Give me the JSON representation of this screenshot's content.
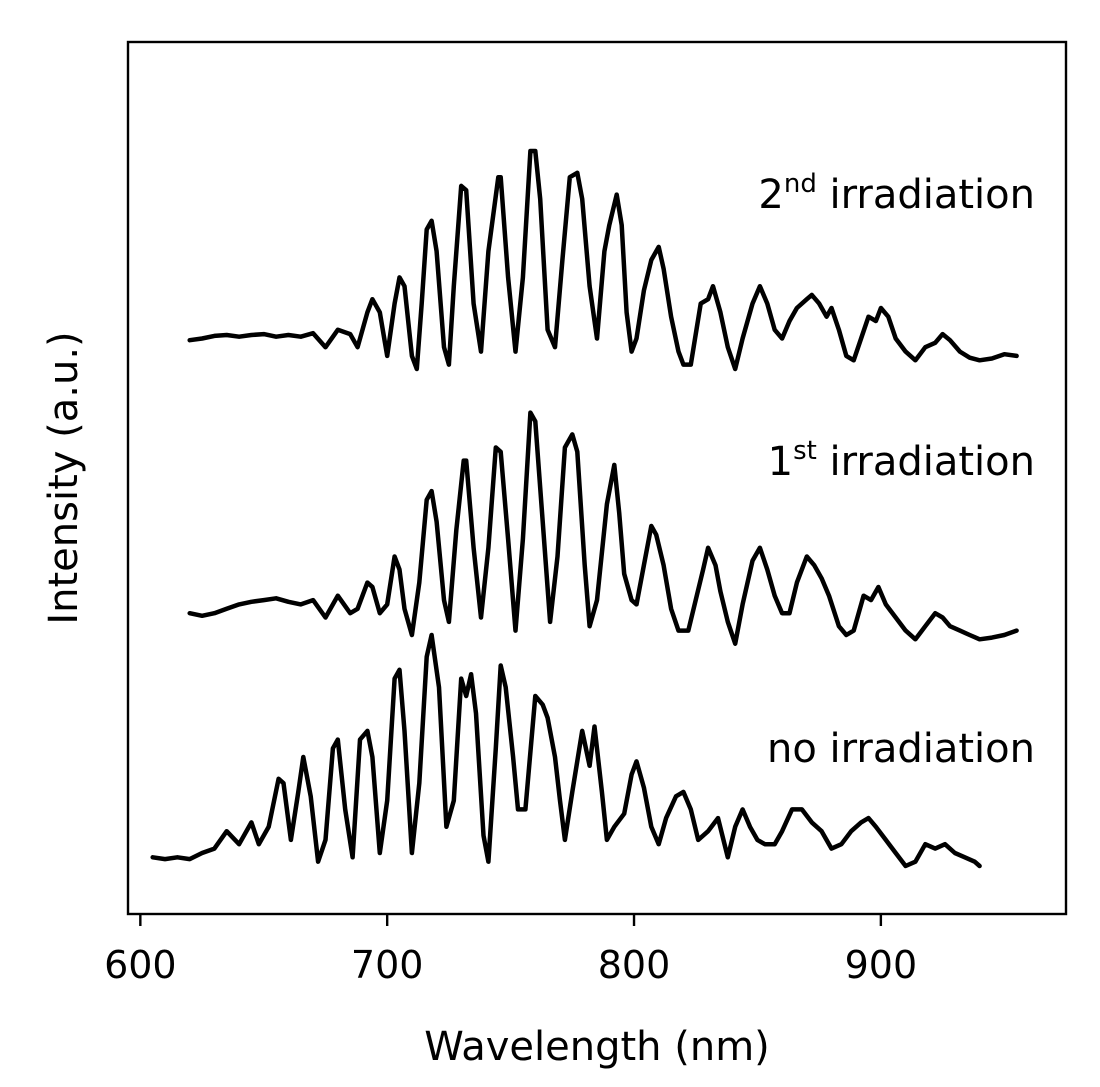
{
  "chart_data": {
    "type": "line",
    "title": "",
    "xlabel": "Wavelength (nm)",
    "ylabel": "Intensity (a.u.)",
    "xlim": [
      595,
      975
    ],
    "ylim": [
      0,
      10
    ],
    "xticks": [
      {
        "value": 600,
        "label": "600"
      },
      {
        "value": 700,
        "label": "700"
      },
      {
        "value": 800,
        "label": "800"
      },
      {
        "value": 900,
        "label": "900"
      }
    ],
    "y_tick_labels": "none",
    "grid": false,
    "legend": "none",
    "line_color": "#000000",
    "series": [
      {
        "label_prefix": "2",
        "label_sup": "nd",
        "label_text": " irradiation",
        "points": [
          [
            620,
            6.58
          ],
          [
            625,
            6.6
          ],
          [
            630,
            6.63
          ],
          [
            635,
            6.64
          ],
          [
            640,
            6.62
          ],
          [
            645,
            6.64
          ],
          [
            650,
            6.65
          ],
          [
            655,
            6.62
          ],
          [
            660,
            6.64
          ],
          [
            665,
            6.62
          ],
          [
            670,
            6.66
          ],
          [
            675,
            6.5
          ],
          [
            680,
            6.7
          ],
          [
            685,
            6.65
          ],
          [
            688,
            6.5
          ],
          [
            692,
            6.9
          ],
          [
            694,
            7.05
          ],
          [
            697,
            6.9
          ],
          [
            700,
            6.4
          ],
          [
            703,
            7.0
          ],
          [
            705,
            7.3
          ],
          [
            707,
            7.2
          ],
          [
            710,
            6.4
          ],
          [
            712,
            6.25
          ],
          [
            714,
            7.0
          ],
          [
            716,
            7.85
          ],
          [
            718,
            7.95
          ],
          [
            720,
            7.6
          ],
          [
            723,
            6.5
          ],
          [
            725,
            6.3
          ],
          [
            727,
            7.2
          ],
          [
            730,
            8.35
          ],
          [
            732,
            8.3
          ],
          [
            735,
            7.0
          ],
          [
            738,
            6.45
          ],
          [
            741,
            7.6
          ],
          [
            745,
            8.45
          ],
          [
            746,
            8.45
          ],
          [
            749,
            7.3
          ],
          [
            752,
            6.45
          ],
          [
            755,
            7.3
          ],
          [
            758,
            8.75
          ],
          [
            760,
            8.75
          ],
          [
            762,
            8.2
          ],
          [
            765,
            6.7
          ],
          [
            768,
            6.5
          ],
          [
            771,
            7.5
          ],
          [
            774,
            8.45
          ],
          [
            777,
            8.5
          ],
          [
            779,
            8.2
          ],
          [
            782,
            7.2
          ],
          [
            785,
            6.6
          ],
          [
            788,
            7.6
          ],
          [
            790,
            7.9
          ],
          [
            793,
            8.25
          ],
          [
            795,
            7.9
          ],
          [
            797,
            6.9
          ],
          [
            799,
            6.45
          ],
          [
            801,
            6.6
          ],
          [
            804,
            7.15
          ],
          [
            807,
            7.5
          ],
          [
            810,
            7.65
          ],
          [
            812,
            7.4
          ],
          [
            815,
            6.85
          ],
          [
            818,
            6.45
          ],
          [
            820,
            6.3
          ],
          [
            823,
            6.3
          ],
          [
            827,
            7.0
          ],
          [
            830,
            7.05
          ],
          [
            832,
            7.2
          ],
          [
            835,
            6.9
          ],
          [
            838,
            6.5
          ],
          [
            841,
            6.25
          ],
          [
            844,
            6.6
          ],
          [
            848,
            7.0
          ],
          [
            851,
            7.2
          ],
          [
            854,
            7.0
          ],
          [
            857,
            6.7
          ],
          [
            860,
            6.6
          ],
          [
            863,
            6.8
          ],
          [
            866,
            6.95
          ],
          [
            870,
            7.05
          ],
          [
            872,
            7.1
          ],
          [
            875,
            7.0
          ],
          [
            878,
            6.85
          ],
          [
            880,
            6.95
          ],
          [
            883,
            6.7
          ],
          [
            886,
            6.4
          ],
          [
            889,
            6.35
          ],
          [
            892,
            6.6
          ],
          [
            895,
            6.85
          ],
          [
            898,
            6.8
          ],
          [
            900,
            6.95
          ],
          [
            903,
            6.85
          ],
          [
            906,
            6.6
          ],
          [
            910,
            6.45
          ],
          [
            914,
            6.35
          ],
          [
            918,
            6.5
          ],
          [
            922,
            6.55
          ],
          [
            925,
            6.65
          ],
          [
            928,
            6.58
          ],
          [
            932,
            6.45
          ],
          [
            936,
            6.38
          ],
          [
            940,
            6.35
          ],
          [
            945,
            6.37
          ],
          [
            950,
            6.42
          ],
          [
            955,
            6.4
          ]
        ]
      },
      {
        "label_prefix": "1",
        "label_sup": "st",
        "label_text": " irradiation",
        "points": [
          [
            620,
            3.45
          ],
          [
            625,
            3.42
          ],
          [
            630,
            3.45
          ],
          [
            635,
            3.5
          ],
          [
            640,
            3.55
          ],
          [
            645,
            3.58
          ],
          [
            650,
            3.6
          ],
          [
            655,
            3.62
          ],
          [
            660,
            3.58
          ],
          [
            665,
            3.55
          ],
          [
            670,
            3.6
          ],
          [
            675,
            3.4
          ],
          [
            680,
            3.65
          ],
          [
            685,
            3.45
          ],
          [
            688,
            3.5
          ],
          [
            692,
            3.8
          ],
          [
            694,
            3.75
          ],
          [
            697,
            3.45
          ],
          [
            700,
            3.55
          ],
          [
            703,
            4.1
          ],
          [
            705,
            3.95
          ],
          [
            707,
            3.5
          ],
          [
            710,
            3.2
          ],
          [
            713,
            3.8
          ],
          [
            716,
            4.75
          ],
          [
            718,
            4.85
          ],
          [
            720,
            4.5
          ],
          [
            723,
            3.6
          ],
          [
            725,
            3.35
          ],
          [
            728,
            4.4
          ],
          [
            731,
            5.2
          ],
          [
            732,
            5.2
          ],
          [
            735,
            4.2
          ],
          [
            738,
            3.4
          ],
          [
            741,
            4.2
          ],
          [
            744,
            5.35
          ],
          [
            746,
            5.3
          ],
          [
            749,
            4.3
          ],
          [
            752,
            3.25
          ],
          [
            755,
            4.3
          ],
          [
            758,
            5.75
          ],
          [
            760,
            5.65
          ],
          [
            763,
            4.5
          ],
          [
            766,
            3.35
          ],
          [
            769,
            4.1
          ],
          [
            772,
            5.35
          ],
          [
            775,
            5.5
          ],
          [
            777,
            5.3
          ],
          [
            780,
            4.0
          ],
          [
            782,
            3.3
          ],
          [
            785,
            3.6
          ],
          [
            789,
            4.7
          ],
          [
            792,
            5.15
          ],
          [
            794,
            4.6
          ],
          [
            796,
            3.9
          ],
          [
            799,
            3.6
          ],
          [
            801,
            3.55
          ],
          [
            804,
            4.0
          ],
          [
            807,
            4.45
          ],
          [
            809,
            4.35
          ],
          [
            812,
            4.0
          ],
          [
            815,
            3.5
          ],
          [
            818,
            3.25
          ],
          [
            822,
            3.25
          ],
          [
            825,
            3.6
          ],
          [
            828,
            3.95
          ],
          [
            830,
            4.2
          ],
          [
            833,
            4.0
          ],
          [
            835,
            3.7
          ],
          [
            838,
            3.35
          ],
          [
            841,
            3.1
          ],
          [
            844,
            3.55
          ],
          [
            848,
            4.05
          ],
          [
            851,
            4.2
          ],
          [
            854,
            3.95
          ],
          [
            857,
            3.65
          ],
          [
            860,
            3.45
          ],
          [
            863,
            3.45
          ],
          [
            866,
            3.8
          ],
          [
            870,
            4.1
          ],
          [
            873,
            4.0
          ],
          [
            876,
            3.85
          ],
          [
            879,
            3.65
          ],
          [
            883,
            3.3
          ],
          [
            886,
            3.2
          ],
          [
            889,
            3.25
          ],
          [
            893,
            3.65
          ],
          [
            896,
            3.6
          ],
          [
            899,
            3.75
          ],
          [
            902,
            3.55
          ],
          [
            906,
            3.4
          ],
          [
            910,
            3.25
          ],
          [
            914,
            3.15
          ],
          [
            918,
            3.3
          ],
          [
            922,
            3.45
          ],
          [
            925,
            3.4
          ],
          [
            928,
            3.3
          ],
          [
            932,
            3.25
          ],
          [
            936,
            3.2
          ],
          [
            940,
            3.15
          ],
          [
            945,
            3.17
          ],
          [
            950,
            3.2
          ],
          [
            955,
            3.25
          ]
        ]
      },
      {
        "label_prefix": "",
        "label_sup": "",
        "label_text": "no irradiation",
        "points": [
          [
            605,
            0.65
          ],
          [
            610,
            0.63
          ],
          [
            615,
            0.65
          ],
          [
            620,
            0.63
          ],
          [
            625,
            0.7
          ],
          [
            630,
            0.75
          ],
          [
            635,
            0.95
          ],
          [
            640,
            0.8
          ],
          [
            645,
            1.05
          ],
          [
            648,
            0.8
          ],
          [
            652,
            1.0
          ],
          [
            656,
            1.55
          ],
          [
            658,
            1.5
          ],
          [
            661,
            0.85
          ],
          [
            664,
            1.4
          ],
          [
            666,
            1.8
          ],
          [
            669,
            1.35
          ],
          [
            672,
            0.6
          ],
          [
            675,
            0.85
          ],
          [
            678,
            1.9
          ],
          [
            680,
            2.0
          ],
          [
            683,
            1.2
          ],
          [
            686,
            0.65
          ],
          [
            689,
            2.0
          ],
          [
            692,
            2.1
          ],
          [
            694,
            1.8
          ],
          [
            697,
            0.7
          ],
          [
            700,
            1.3
          ],
          [
            703,
            2.7
          ],
          [
            705,
            2.8
          ],
          [
            707,
            2.1
          ],
          [
            710,
            0.7
          ],
          [
            713,
            1.5
          ],
          [
            716,
            2.95
          ],
          [
            718,
            3.2
          ],
          [
            721,
            2.6
          ],
          [
            724,
            1.0
          ],
          [
            727,
            1.3
          ],
          [
            730,
            2.7
          ],
          [
            732,
            2.5
          ],
          [
            734,
            2.75
          ],
          [
            736,
            2.3
          ],
          [
            739,
            0.9
          ],
          [
            741,
            0.6
          ],
          [
            744,
            1.9
          ],
          [
            746,
            2.85
          ],
          [
            748,
            2.6
          ],
          [
            751,
            1.8
          ],
          [
            753,
            1.2
          ],
          [
            756,
            1.2
          ],
          [
            760,
            2.5
          ],
          [
            763,
            2.4
          ],
          [
            765,
            2.25
          ],
          [
            768,
            1.8
          ],
          [
            770,
            1.3
          ],
          [
            772,
            0.85
          ],
          [
            775,
            1.4
          ],
          [
            779,
            2.1
          ],
          [
            782,
            1.7
          ],
          [
            784,
            2.15
          ],
          [
            787,
            1.4
          ],
          [
            789,
            0.85
          ],
          [
            792,
            1.0
          ],
          [
            796,
            1.15
          ],
          [
            799,
            1.6
          ],
          [
            801,
            1.75
          ],
          [
            804,
            1.45
          ],
          [
            807,
            1.0
          ],
          [
            810,
            0.8
          ],
          [
            813,
            1.1
          ],
          [
            817,
            1.35
          ],
          [
            820,
            1.4
          ],
          [
            823,
            1.2
          ],
          [
            826,
            0.85
          ],
          [
            830,
            0.95
          ],
          [
            834,
            1.1
          ],
          [
            838,
            0.65
          ],
          [
            841,
            1.0
          ],
          [
            844,
            1.2
          ],
          [
            847,
            1.0
          ],
          [
            850,
            0.85
          ],
          [
            853,
            0.8
          ],
          [
            857,
            0.8
          ],
          [
            860,
            0.95
          ],
          [
            864,
            1.2
          ],
          [
            868,
            1.2
          ],
          [
            872,
            1.05
          ],
          [
            876,
            0.95
          ],
          [
            880,
            0.75
          ],
          [
            884,
            0.8
          ],
          [
            888,
            0.95
          ],
          [
            892,
            1.05
          ],
          [
            895,
            1.1
          ],
          [
            898,
            1.0
          ],
          [
            902,
            0.85
          ],
          [
            906,
            0.7
          ],
          [
            910,
            0.55
          ],
          [
            914,
            0.6
          ],
          [
            918,
            0.8
          ],
          [
            922,
            0.75
          ],
          [
            926,
            0.8
          ],
          [
            930,
            0.7
          ],
          [
            934,
            0.65
          ],
          [
            938,
            0.6
          ],
          [
            940,
            0.55
          ]
        ]
      }
    ]
  }
}
